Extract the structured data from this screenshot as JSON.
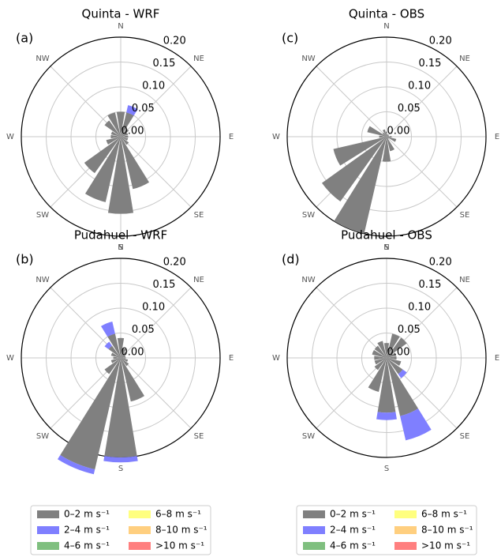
{
  "chart_data": [
    {
      "type": "windrose",
      "title": "Quinta - WRF",
      "panel_label": "(a)",
      "categories": [
        "N",
        null,
        "NE",
        null,
        "E",
        null,
        "SE",
        null,
        "S",
        null,
        "SW",
        null,
        "W",
        null,
        "NW",
        null
      ],
      "ylim": [
        0,
        0.2
      ],
      "yticks": [
        {
          "value": 0,
          "label": "0.00"
        },
        0.05,
        {
          "value": 0.1,
          "label": "0.10"
        },
        0.15,
        {
          "value": 0.2,
          "label": "0.20"
        }
      ],
      "grid": true,
      "legend": false,
      "series": [
        {
          "name": "0–2 m s⁻¹",
          "color": "#808080",
          "values": [
            0.05,
            0.05,
            0.02,
            0.015,
            0.015,
            0.015,
            0.02,
            0.108,
            0.155,
            0.135,
            0.09,
            0.03,
            0.02,
            0.02,
            0.04,
            0.05
          ]
        },
        {
          "name": "2–4 m s⁻¹",
          "color": "#7f7fff",
          "values": [
            0,
            0.015,
            0,
            0,
            0,
            0,
            0,
            0,
            0,
            0,
            0,
            0,
            0,
            0,
            0,
            0
          ]
        },
        {
          "name": "4–6 m s⁻¹",
          "color": "#7fbf7f",
          "values": [
            0,
            0,
            0,
            0,
            0,
            0,
            0,
            0,
            0,
            0,
            0,
            0,
            0,
            0,
            0,
            0
          ]
        },
        {
          "name": "6–8 m s⁻¹",
          "color": "#ffff7f",
          "values": [
            0,
            0,
            0,
            0,
            0,
            0,
            0,
            0,
            0,
            0,
            0,
            0,
            0,
            0,
            0,
            0
          ]
        },
        {
          "name": "8–10 m s⁻¹",
          "color": "#ffcf7f",
          "values": [
            0,
            0,
            0,
            0,
            0,
            0,
            0,
            0,
            0,
            0,
            0,
            0,
            0,
            0,
            0,
            0
          ]
        },
        {
          "name": ">10 m s⁻¹",
          "color": "#ff7f7f",
          "values": [
            0,
            0,
            0,
            0,
            0,
            0,
            0,
            0,
            0,
            0,
            0,
            0,
            0,
            0,
            0,
            0
          ]
        }
      ]
    },
    {
      "type": "windrose",
      "title": "Pudahuel - WRF",
      "panel_label": "(b)",
      "categories": [
        "N",
        null,
        "NE",
        null,
        "E",
        null,
        "SE",
        null,
        "S",
        null,
        "SW",
        null,
        "W",
        null,
        "NW",
        null
      ],
      "ylim": [
        0,
        0.2
      ],
      "yticks": [
        {
          "value": 0,
          "label": "0.00"
        },
        0.05,
        {
          "value": 0.1,
          "label": "0.10"
        },
        0.15,
        {
          "value": 0.2,
          "label": "0.20"
        }
      ],
      "grid": true,
      "legend": true,
      "series": [
        {
          "name": "0–2 m s⁻¹",
          "color": "#808080",
          "values": [
            0.04,
            0.02,
            0.015,
            0.01,
            0.01,
            0.015,
            0.02,
            0.09,
            0.2,
            0.23,
            0.04,
            0.02,
            0.015,
            0.02,
            0.03,
            0.05
          ]
        },
        {
          "name": "2–4 m s⁻¹",
          "color": "#7f7fff",
          "values": [
            0,
            0,
            0,
            0,
            0,
            0,
            0,
            0,
            0.01,
            0.01,
            0,
            0,
            0,
            0,
            0.01,
            0.025
          ]
        },
        {
          "name": "4–6 m s⁻¹",
          "color": "#7fbf7f",
          "values": [
            0,
            0,
            0,
            0,
            0,
            0,
            0,
            0,
            0,
            0,
            0,
            0,
            0,
            0,
            0,
            0
          ]
        },
        {
          "name": "6–8 m s⁻¹",
          "color": "#ffff7f",
          "values": [
            0,
            0,
            0,
            0,
            0,
            0,
            0,
            0,
            0,
            0,
            0,
            0,
            0,
            0,
            0,
            0
          ]
        },
        {
          "name": "8–10 m s⁻¹",
          "color": "#ffcf7f",
          "values": [
            0,
            0,
            0,
            0,
            0,
            0,
            0,
            0,
            0,
            0,
            0,
            0,
            0,
            0,
            0,
            0
          ]
        },
        {
          "name": ">10 m s⁻¹",
          "color": "#ff7f7f",
          "values": [
            0,
            0,
            0,
            0,
            0,
            0,
            0,
            0,
            0,
            0,
            0,
            0,
            0,
            0,
            0,
            0
          ]
        }
      ]
    },
    {
      "type": "windrose",
      "title": "Quinta - OBS",
      "panel_label": "(c)",
      "categories": [
        "N",
        null,
        "NE",
        null,
        "E",
        null,
        "SE",
        null,
        "S",
        null,
        "SW",
        null,
        "W",
        null,
        "NW",
        null
      ],
      "ylim": [
        0,
        0.2
      ],
      "yticks": [
        {
          "value": 0,
          "label": "0.00"
        },
        0.05,
        {
          "value": 0.1,
          "label": "0.10"
        },
        0.15,
        {
          "value": 0.2,
          "label": "0.20"
        }
      ],
      "grid": true,
      "legend": false,
      "series": [
        {
          "name": "0–2 m s⁻¹",
          "color": "#808080",
          "values": [
            0.01,
            0.005,
            0.005,
            0.005,
            0.01,
            0.02,
            0.005,
            0.03,
            0.05,
            0.2,
            0.16,
            0.11,
            0.015,
            0.04,
            0.01,
            0.015
          ]
        },
        {
          "name": "2–4 m s⁻¹",
          "color": "#7f7fff",
          "values": [
            0,
            0,
            0,
            0,
            0,
            0,
            0,
            0,
            0,
            0,
            0,
            0,
            0,
            0,
            0,
            0
          ]
        },
        {
          "name": "4–6 m s⁻¹",
          "color": "#7fbf7f",
          "values": [
            0,
            0,
            0,
            0,
            0,
            0,
            0,
            0,
            0,
            0,
            0,
            0,
            0,
            0,
            0,
            0
          ]
        },
        {
          "name": "6–8 m s⁻¹",
          "color": "#ffff7f",
          "values": [
            0,
            0,
            0,
            0,
            0,
            0,
            0,
            0,
            0,
            0,
            0,
            0,
            0,
            0,
            0,
            0
          ]
        },
        {
          "name": "8–10 m s⁻¹",
          "color": "#ffcf7f",
          "values": [
            0,
            0,
            0,
            0,
            0,
            0,
            0,
            0,
            0,
            0,
            0,
            0,
            0,
            0,
            0,
            0
          ]
        },
        {
          "name": ">10 m s⁻¹",
          "color": "#ff7f7f",
          "values": [
            0,
            0,
            0,
            0,
            0,
            0,
            0,
            0,
            0,
            0,
            0,
            0,
            0,
            0,
            0,
            0
          ]
        }
      ]
    },
    {
      "type": "windrose",
      "title": "Pudahuel - OBS",
      "panel_label": "(d)",
      "categories": [
        "N",
        null,
        "NE",
        null,
        "E",
        null,
        "SE",
        null,
        "S",
        null,
        "SW",
        null,
        "W",
        null,
        "NW",
        null
      ],
      "ylim": [
        0,
        0.2
      ],
      "yticks": [
        {
          "value": 0,
          "label": "0.00"
        },
        0.05,
        {
          "value": 0.1,
          "label": "0.10"
        },
        0.15,
        {
          "value": 0.2,
          "label": "0.20"
        }
      ],
      "grid": true,
      "legend": true,
      "series": [
        {
          "name": "0–2 m s⁻¹",
          "color": "#808080",
          "values": [
            0.03,
            0.05,
            0.05,
            0.02,
            0.02,
            0.03,
            0.04,
            0.12,
            0.11,
            0.07,
            0.03,
            0.025,
            0.025,
            0.03,
            0.03,
            0.035
          ]
        },
        {
          "name": "2–4 m s⁻¹",
          "color": "#7f7fff",
          "values": [
            0,
            0,
            0,
            0,
            0,
            0,
            0.01,
            0.05,
            0.015,
            0,
            0,
            0,
            0,
            0,
            0,
            0
          ]
        },
        {
          "name": "4–6 m s⁻¹",
          "color": "#7fbf7f",
          "values": [
            0,
            0,
            0,
            0,
            0,
            0,
            0,
            0,
            0,
            0,
            0,
            0,
            0,
            0,
            0,
            0
          ]
        },
        {
          "name": "6–8 m s⁻¹",
          "color": "#ffff7f",
          "values": [
            0,
            0,
            0,
            0,
            0,
            0,
            0,
            0,
            0,
            0,
            0,
            0,
            0,
            0,
            0,
            0
          ]
        },
        {
          "name": "8–10 m s⁻¹",
          "color": "#ffcf7f",
          "values": [
            0,
            0,
            0,
            0,
            0,
            0,
            0,
            0,
            0,
            0,
            0,
            0,
            0,
            0,
            0,
            0
          ]
        },
        {
          "name": ">10 m s⁻¹",
          "color": "#ff7f7f",
          "values": [
            0,
            0,
            0,
            0,
            0,
            0,
            0,
            0,
            0,
            0,
            0,
            0,
            0,
            0,
            0,
            0
          ]
        }
      ]
    }
  ]
}
